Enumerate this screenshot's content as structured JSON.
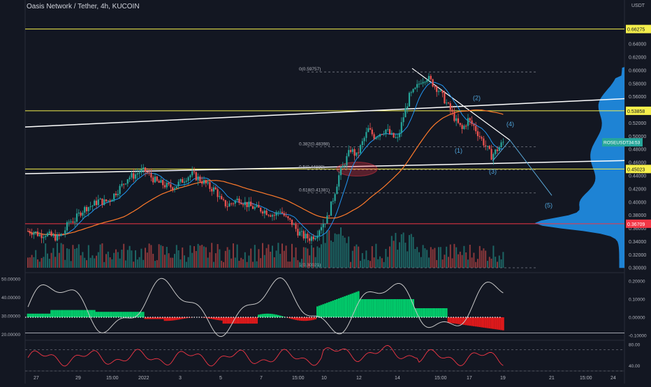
{
  "header": {
    "symbol": "Oasis Network / Tether, 4h, KUCOIN",
    "currency": "USDT"
  },
  "price_axis": {
    "labels": [
      "0.64000",
      "0.62000",
      "0.60000",
      "0.58000",
      "0.56000",
      "0.54000",
      "0.52000",
      "0.50000",
      "0.48000",
      "0.46000",
      "0.44000",
      "0.42000",
      "0.40000",
      "0.38000",
      "0.36000",
      "0.34000",
      "0.32000",
      "0.30000"
    ],
    "values": [
      0.64,
      0.62,
      0.6,
      0.58,
      0.56,
      0.54,
      0.52,
      0.5,
      0.48,
      0.46,
      0.44,
      0.42,
      0.4,
      0.38,
      0.36,
      0.34,
      0.32,
      0.3
    ],
    "range": [
      0.296,
      0.692
    ]
  },
  "badges": [
    {
      "text": "0.66275",
      "value": 0.66275,
      "bg": "#f5ef4c",
      "fg": "#131722"
    },
    {
      "text": "0.53858",
      "value": 0.53858,
      "bg": "#f5ef4c",
      "fg": "#131722"
    },
    {
      "text": "ROSEUSDT",
      "text2": "34:53",
      "value": 0.4907,
      "bg": "#26a69a",
      "fg": "#ffffff"
    },
    {
      "text": "0.45023",
      "value": 0.45023,
      "bg": "#f5ef4c",
      "fg": "#131722"
    },
    {
      "text": "0.36709",
      "value": 0.36709,
      "bg": "#f23645",
      "fg": "#ffffff"
    }
  ],
  "fib_labels": [
    {
      "text": "0(0.59757)",
      "value": 0.59757
    },
    {
      "text": "0.382(0.48398)",
      "value": 0.48398
    },
    {
      "text": "0.5(0.44889)",
      "value": 0.44889
    },
    {
      "text": "0.618(0.41381)",
      "value": 0.41381
    },
    {
      "text": "1(0.30021)",
      "value": 0.30021
    }
  ],
  "wave_labels": [
    "(1)",
    "(2)",
    "(3)",
    "(4)",
    "(5)"
  ],
  "osc_axis": {
    "left": [
      "50.00000",
      "40.00000",
      "30.00000",
      "20.00000"
    ],
    "right": [
      "0.20000",
      "0.10000",
      "0.00000",
      "-0.10000"
    ]
  },
  "rsi_axis": {
    "right": [
      "80.00",
      "40.00"
    ]
  },
  "time_axis": [
    "27",
    "29",
    "15:00",
    "2022",
    "3",
    "5",
    "7",
    "15:00",
    "10",
    "12",
    "14",
    "15:00",
    "17",
    "19",
    "21",
    "15:00",
    "24"
  ],
  "colors": {
    "up": "#26a69a",
    "down": "#ef5350",
    "yellow": "#f5ef4c",
    "red": "#f23645",
    "white": "#ffffff",
    "ma_blue": "#2196f3",
    "ma_orange": "#ff7a2b",
    "profile": "#2196f3"
  },
  "chart_data": {
    "type": "candlestick",
    "title": "Oasis Network / Tether, 4h, KUCOIN",
    "y_range": [
      0.296,
      0.692
    ],
    "close_path": [
      [
        0,
        0.356
      ],
      [
        3,
        0.355
      ],
      [
        6,
        0.35
      ],
      [
        9,
        0.352
      ],
      [
        12,
        0.348
      ],
      [
        15,
        0.346
      ],
      [
        18,
        0.352
      ],
      [
        21,
        0.37
      ],
      [
        24,
        0.373
      ],
      [
        27,
        0.385
      ],
      [
        30,
        0.392
      ],
      [
        33,
        0.395
      ],
      [
        36,
        0.402
      ],
      [
        39,
        0.4
      ],
      [
        42,
        0.404
      ],
      [
        45,
        0.415
      ],
      [
        48,
        0.425
      ],
      [
        51,
        0.437
      ],
      [
        54,
        0.44
      ],
      [
        57,
        0.446
      ],
      [
        60,
        0.447
      ],
      [
        63,
        0.438
      ],
      [
        66,
        0.43
      ],
      [
        69,
        0.427
      ],
      [
        72,
        0.423
      ],
      [
        75,
        0.424
      ],
      [
        78,
        0.43
      ],
      [
        81,
        0.438
      ],
      [
        84,
        0.442
      ],
      [
        87,
        0.436
      ],
      [
        90,
        0.43
      ],
      [
        93,
        0.422
      ],
      [
        96,
        0.418
      ],
      [
        99,
        0.4
      ],
      [
        102,
        0.395
      ],
      [
        105,
        0.4
      ],
      [
        108,
        0.405
      ],
      [
        111,
        0.398
      ],
      [
        114,
        0.393
      ],
      [
        117,
        0.39
      ],
      [
        120,
        0.388
      ],
      [
        123,
        0.384
      ],
      [
        126,
        0.38
      ],
      [
        129,
        0.388
      ],
      [
        132,
        0.375
      ],
      [
        135,
        0.368
      ],
      [
        138,
        0.355
      ],
      [
        141,
        0.348
      ],
      [
        144,
        0.345
      ],
      [
        147,
        0.35
      ],
      [
        150,
        0.365
      ],
      [
        153,
        0.375
      ],
      [
        156,
        0.405
      ],
      [
        159,
        0.44
      ],
      [
        162,
        0.46
      ],
      [
        165,
        0.48
      ],
      [
        168,
        0.47
      ],
      [
        171,
        0.49
      ],
      [
        174,
        0.51
      ],
      [
        177,
        0.5
      ],
      [
        180,
        0.505
      ],
      [
        183,
        0.51
      ],
      [
        186,
        0.5
      ],
      [
        189,
        0.495
      ],
      [
        192,
        0.53
      ],
      [
        195,
        0.56
      ],
      [
        198,
        0.57
      ],
      [
        201,
        0.585
      ],
      [
        204,
        0.59
      ],
      [
        207,
        0.58
      ],
      [
        210,
        0.57
      ],
      [
        213,
        0.555
      ],
      [
        216,
        0.54
      ],
      [
        219,
        0.522
      ],
      [
        222,
        0.51
      ],
      [
        225,
        0.525
      ],
      [
        228,
        0.515
      ],
      [
        231,
        0.5
      ],
      [
        234,
        0.485
      ],
      [
        237,
        0.47
      ],
      [
        240,
        0.48
      ],
      [
        243,
        0.491
      ]
    ],
    "volume_profile_peak": 0.367,
    "horizontal_levels": [
      0.66275,
      0.53858,
      0.45023,
      0.36709
    ],
    "oscillator_range": [
      17,
      52
    ],
    "macd_range": [
      -0.12,
      0.2
    ],
    "rsi_range": [
      30,
      85
    ]
  }
}
